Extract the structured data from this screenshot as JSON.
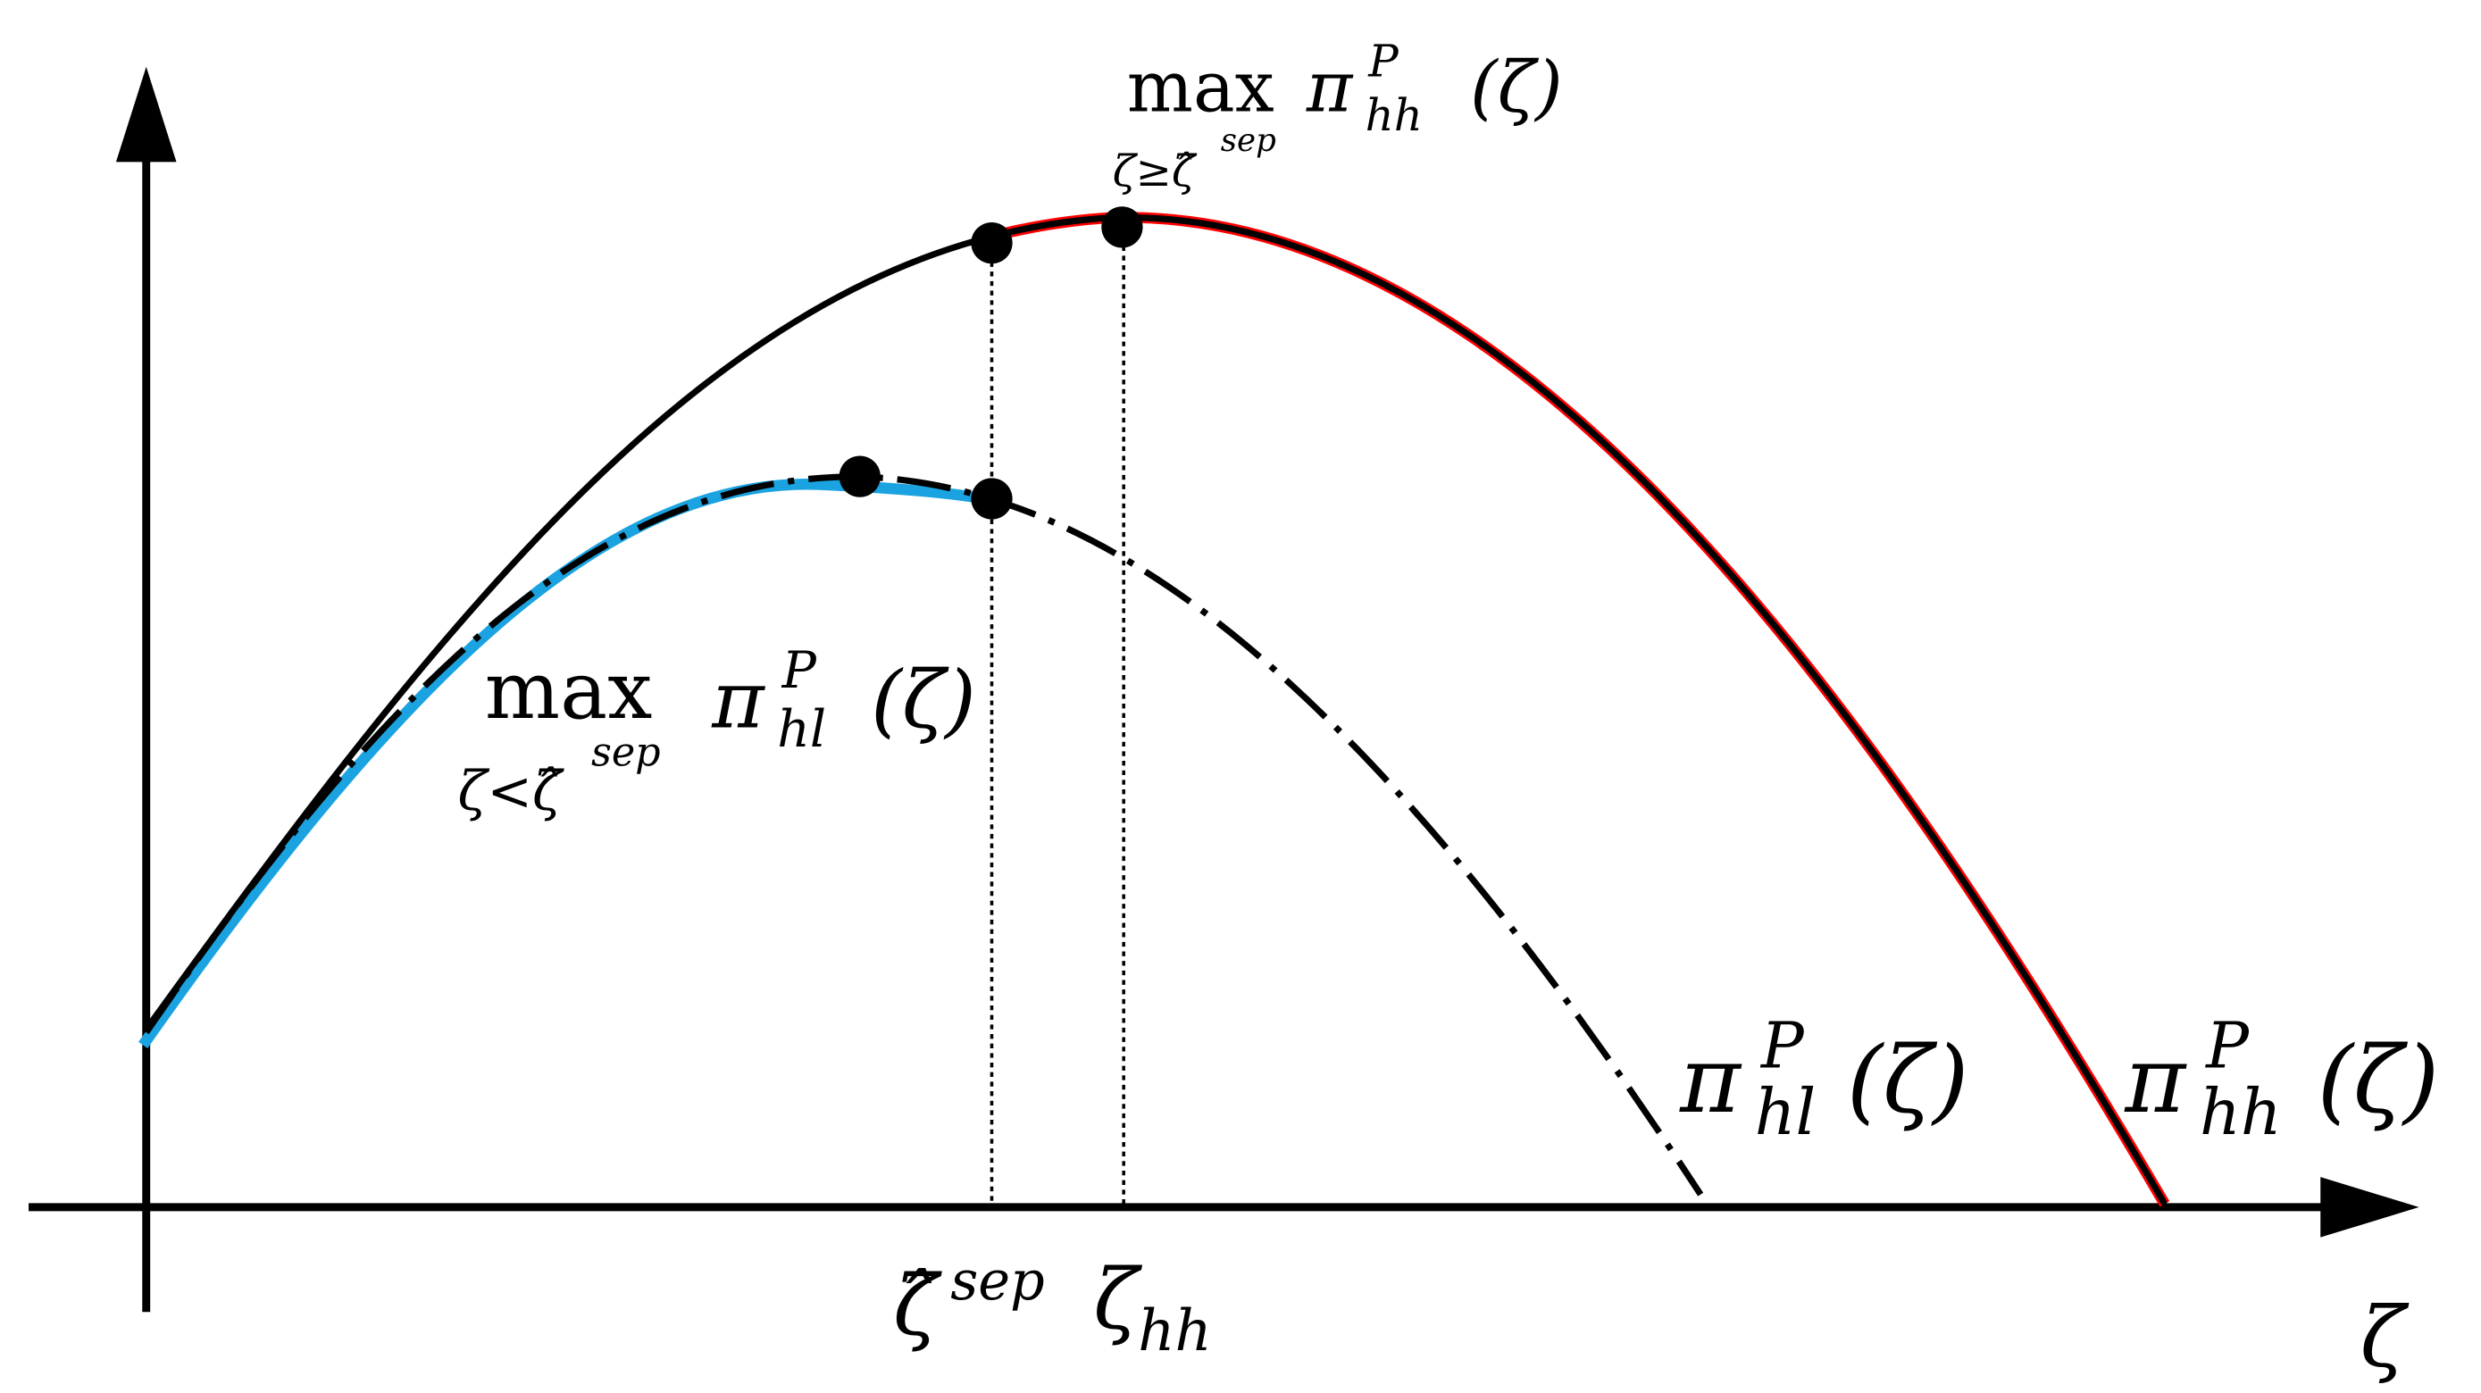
{
  "colors": {
    "axis": "#000000",
    "curve_hh": "#000000",
    "curve_hh_segment": "#ff0000",
    "curve_hl": "#000000",
    "curve_hl_segment": "#1aa3e0",
    "marker": "#000000"
  },
  "axes": {
    "x_label": "ζ",
    "x_ticks": {
      "zeta_hat_sep": {
        "symbol": "ζ̂",
        "superscript": "sep"
      },
      "zeta_hh": {
        "symbol": "ζ",
        "subscript": "hh"
      }
    }
  },
  "labels": {
    "max_hh": {
      "operator": "max",
      "constraint": "ζ≥ζ̂",
      "constraint_sup": "sep",
      "function": "π",
      "function_sup": "P",
      "function_sub": "hh",
      "argument": "(ζ)"
    },
    "max_hl": {
      "operator": "max",
      "constraint": "ζ<ζ̂",
      "constraint_sup": "sep",
      "function": "π",
      "function_sup": "P",
      "function_sub": "hl",
      "argument": "(ζ)"
    },
    "curve_hl": {
      "function": "π",
      "function_sup": "P",
      "function_sub": "hl",
      "argument": "(ζ)"
    },
    "curve_hh": {
      "function": "π",
      "function_sup": "P",
      "function_sub": "hh",
      "argument": "(ζ)"
    }
  }
}
